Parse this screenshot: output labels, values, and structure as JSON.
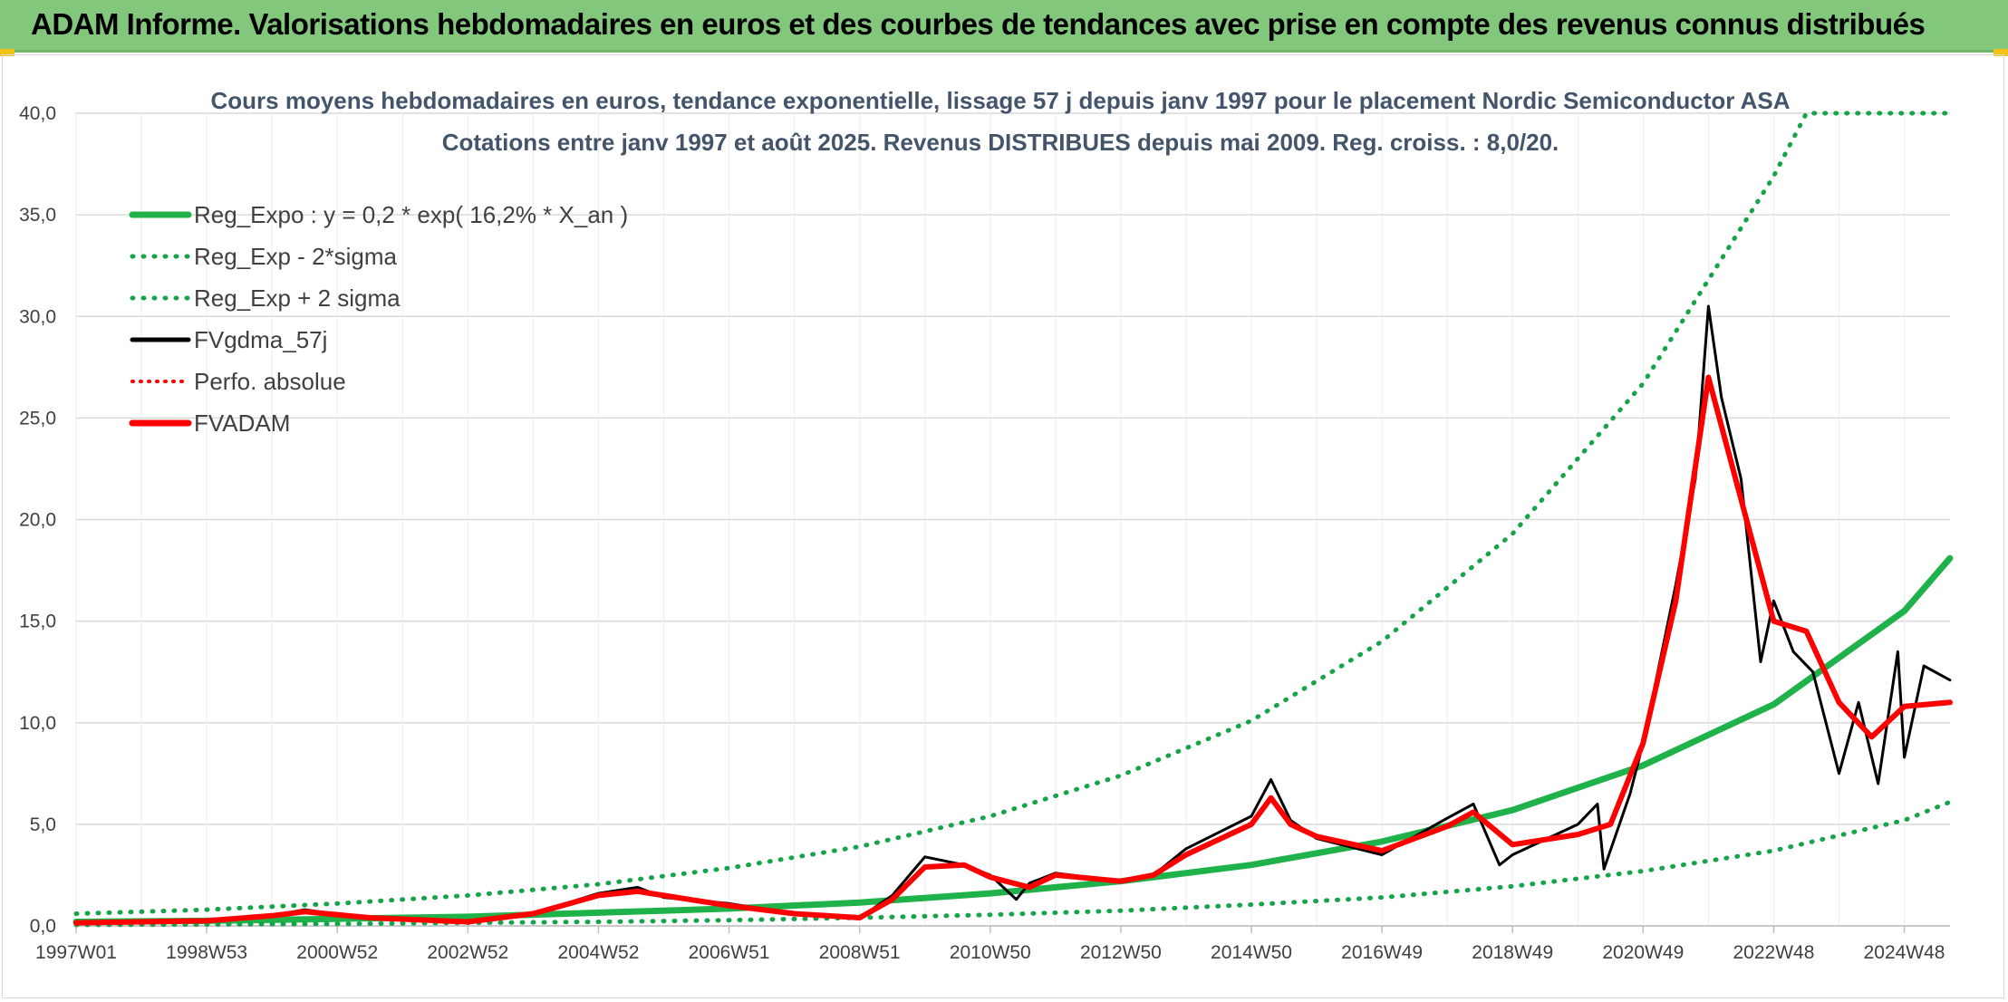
{
  "header": {
    "title": "ADAM Informe. Valorisations hebdomadaires en euros et des courbes de tendances avec prise en compte des revenus connus distribués"
  },
  "colors": {
    "reg_expo": "#1fb24a",
    "bands": "#16a34a",
    "fvgdma": "#000000",
    "fvadam": "#ff0000",
    "perfo": "#ff0000",
    "grid": "#d9d9d9",
    "text": "#404040"
  },
  "chart_data": {
    "type": "line",
    "title": "Cours moyens hebdomadaires en euros, tendance exponentielle, lissage 57 j depuis janv 1997 pour le placement Nordic Semiconductor ASA",
    "subtitle": "Cotations entre janv 1997 et août 2025. Revenus DISTRIBUES depuis mai 2009. Reg. croiss. : 8,0/20.",
    "xlabel": "",
    "ylabel": "",
    "ylim": [
      0,
      40
    ],
    "y_ticks": [
      "0,0",
      "5,0",
      "10,0",
      "15,0",
      "20,0",
      "25,0",
      "30,0",
      "35,0",
      "40,0"
    ],
    "x_ticks": [
      "1997W01",
      "1998W53",
      "2000W52",
      "2002W52",
      "2004W52",
      "2006W51",
      "2008W51",
      "2010W50",
      "2012W50",
      "2014W50",
      "2016W49",
      "2018W49",
      "2020W49",
      "2022W48",
      "2024W48"
    ],
    "x_tick_years": [
      1997.0,
      1999.0,
      2001.0,
      2003.0,
      2005.0,
      2007.0,
      2009.0,
      2011.0,
      2013.0,
      2015.0,
      2017.0,
      2019.0,
      2021.0,
      2023.0,
      2025.0
    ],
    "xlim": [
      1997.0,
      2025.7
    ],
    "grid": true,
    "legend_position": "top-left",
    "legend": [
      {
        "label": "Reg_Expo : y = 0,2 * exp( 16,2% *  X_an )",
        "style": "solid-thick",
        "color": "#1fb24a"
      },
      {
        "label": "Reg_Exp - 2*sigma",
        "style": "dotted",
        "color": "#16a34a"
      },
      {
        "label": "Reg_Exp + 2 sigma",
        "style": "dotted",
        "color": "#16a34a"
      },
      {
        "label": "FVgdma_57j",
        "style": "solid",
        "color": "#000000"
      },
      {
        "label": "Perfo. absolue",
        "style": "dotted",
        "color": "#ff0000"
      },
      {
        "label": "FVADAM",
        "style": "solid-thick",
        "color": "#ff0000"
      }
    ],
    "series": [
      {
        "name": "Reg_Expo : y = 0,2 * exp( 16,2% *  X_an )",
        "x": [
          1997,
          1999,
          2001,
          2003,
          2005,
          2007,
          2009,
          2011,
          2013,
          2015,
          2017,
          2019,
          2021,
          2023,
          2025,
          2025.7
        ],
        "y": [
          0.2,
          0.25,
          0.35,
          0.45,
          0.65,
          0.85,
          1.15,
          1.6,
          2.2,
          3.0,
          4.15,
          5.7,
          7.9,
          10.9,
          15.5,
          18.1
        ]
      },
      {
        "name": "Reg_Exp - 2*sigma",
        "x": [
          1997,
          1999,
          2001,
          2003,
          2005,
          2007,
          2009,
          2011,
          2013,
          2015,
          2017,
          2019,
          2021,
          2023,
          2025,
          2025.7
        ],
        "y": [
          0.05,
          0.07,
          0.1,
          0.15,
          0.2,
          0.28,
          0.4,
          0.55,
          0.75,
          1.05,
          1.4,
          1.95,
          2.7,
          3.7,
          5.2,
          6.1
        ]
      },
      {
        "name": "Reg_Exp + 2 sigma",
        "x": [
          1997,
          1999,
          2001,
          2003,
          2005,
          2007,
          2009,
          2011,
          2013,
          2015,
          2017,
          2019,
          2021,
          2023,
          2023.5,
          2025.7
        ],
        "y": [
          0.6,
          0.8,
          1.1,
          1.5,
          2.05,
          2.85,
          3.9,
          5.4,
          7.4,
          10.1,
          14.0,
          19.3,
          26.7,
          36.9,
          40.0,
          40.0
        ]
      },
      {
        "name": "FVgdma_57j",
        "x": [
          1997,
          1998,
          1999,
          2000,
          2000.5,
          2001.5,
          2003,
          2004,
          2005,
          2005.6,
          2006,
          2007,
          2008,
          2009,
          2009.5,
          2010,
          2010.6,
          2011,
          2011.6,
          2012,
          2013,
          2013.5,
          2014,
          2015,
          2015.3,
          2015.6,
          2016,
          2017,
          2018,
          2018.4,
          2019,
          2020,
          2020.5,
          2021,
          2021.5,
          2022,
          2022.5,
          2023,
          2023.5,
          2024,
          2024.5,
          2025,
          2025.7
        ],
        "y": [
          0.15,
          0.2,
          0.25,
          0.5,
          0.7,
          0.4,
          0.2,
          0.6,
          1.5,
          1.7,
          1.5,
          1.0,
          0.6,
          0.4,
          1.3,
          2.9,
          3.0,
          2.4,
          1.9,
          2.5,
          2.2,
          2.5,
          3.5,
          5.0,
          6.3,
          5.0,
          4.4,
          3.7,
          4.9,
          5.6,
          4.0,
          4.5,
          5.0,
          9.0,
          16.0,
          27.0,
          21.0,
          15.0,
          14.5,
          11.0,
          9.3,
          10.8,
          11.0
        ]
      },
      {
        "name": "FVADAM",
        "x": [
          1997,
          1998,
          1999,
          2000,
          2000.5,
          2001.5,
          2003,
          2004,
          2005,
          2005.6,
          2006,
          2007,
          2008,
          2009,
          2009.5,
          2010,
          2010.6,
          2011,
          2011.4,
          2011.6,
          2012,
          2013,
          2013.5,
          2014,
          2015,
          2015.3,
          2015.6,
          2016,
          2017,
          2018,
          2018.4,
          2018.8,
          2019,
          2020,
          2020.3,
          2020.4,
          2020.8,
          2021,
          2021.5,
          2021.8,
          2022,
          2022.2,
          2022.5,
          2022.8,
          2023,
          2023.3,
          2023.6,
          2024,
          2024.3,
          2024.6,
          2024.9,
          2025,
          2025.3,
          2025.7
        ],
        "y": [
          0.15,
          0.2,
          0.25,
          0.5,
          0.8,
          0.35,
          0.2,
          0.6,
          1.6,
          1.9,
          1.4,
          1.1,
          0.6,
          0.4,
          1.5,
          3.4,
          3.0,
          2.5,
          1.3,
          2.1,
          2.6,
          2.2,
          2.5,
          3.8,
          5.4,
          7.2,
          5.2,
          4.3,
          3.5,
          5.3,
          6.0,
          3.0,
          3.5,
          5.0,
          6.0,
          2.8,
          6.5,
          9.0,
          16.8,
          22.0,
          30.5,
          26.0,
          22.0,
          13.0,
          16.0,
          13.5,
          12.5,
          7.5,
          11.0,
          7.0,
          13.5,
          8.3,
          12.8,
          12.1
        ]
      }
    ]
  }
}
